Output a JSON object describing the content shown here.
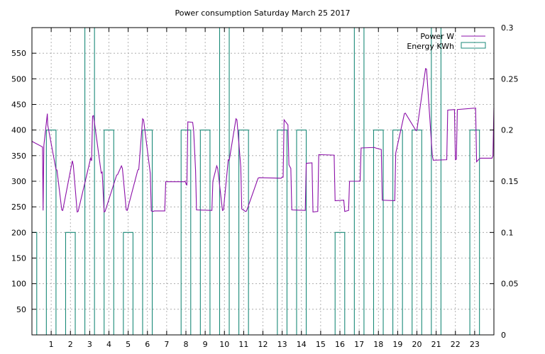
{
  "chart_data": {
    "type": "line",
    "title": "Power consumption Saturday March 25 2017",
    "xlabel": "",
    "ylabel": "",
    "y2label": "",
    "xlim": [
      0,
      24
    ],
    "ylim": [
      0,
      600
    ],
    "y2lim": [
      0,
      0.3
    ],
    "grid": true,
    "legend_position": "top-right",
    "x_ticks": [
      1,
      2,
      3,
      4,
      5,
      6,
      7,
      8,
      9,
      10,
      11,
      12,
      13,
      14,
      15,
      16,
      17,
      18,
      19,
      20,
      21,
      22,
      23
    ],
    "y_ticks": [
      50,
      100,
      150,
      200,
      250,
      300,
      350,
      400,
      450,
      500,
      550
    ],
    "y2_ticks": [
      "0",
      "0.05",
      "0.1",
      "0.15",
      "0.2",
      "0.25",
      "0.3"
    ],
    "series": [
      {
        "name": "Power W",
        "axis": "left",
        "color": "#8b0fa8",
        "x": [
          0,
          0.55,
          0.58,
          0.62,
          0.8,
          0.82,
          1.25,
          1.3,
          1.55,
          1.6,
          2.1,
          2.15,
          2.35,
          2.4,
          3.05,
          3.1,
          3.15,
          3.2,
          3.6,
          3.65,
          3.75,
          3.8,
          4.4,
          4.45,
          4.65,
          4.7,
          4.9,
          4.95,
          5.5,
          5.55,
          5.75,
          5.8,
          6.15,
          6.2,
          6.3,
          6.35,
          6.9,
          6.95,
          7.9,
          7.95,
          8.05,
          8.1,
          8.35,
          8.4,
          8.5,
          8.55,
          9.35,
          9.4,
          9.6,
          9.65,
          9.9,
          9.95,
          10.2,
          10.25,
          10.6,
          10.65,
          10.85,
          10.9,
          11.1,
          11.15,
          11.75,
          11.8,
          12.95,
          13.0,
          13.05,
          13.1,
          13.3,
          13.35,
          13.45,
          13.5,
          14.2,
          14.25,
          14.55,
          14.6,
          14.85,
          14.9,
          15.7,
          15.75,
          16.2,
          16.25,
          16.45,
          16.5,
          17.05,
          17.1,
          17.8,
          17.85,
          18.15,
          18.2,
          18.85,
          18.9,
          19.35,
          19.4,
          19.95,
          20.0,
          20.45,
          20.5,
          20.8,
          20.85,
          21.55,
          21.6,
          21.95,
          22.0,
          22.05,
          22.1,
          23.05,
          23.1,
          23.25,
          23.3,
          23.9,
          23.95,
          24.0
        ],
        "y": [
          378,
          367,
          243,
          370,
          432,
          410,
          323,
          322,
          244,
          243,
          340,
          331,
          240,
          241,
          345,
          340,
          427,
          428,
          316,
          318,
          240,
          241,
          312,
          313,
          330,
          325,
          244,
          243,
          322,
          323,
          422,
          420,
          315,
          242,
          241,
          242,
          242,
          299,
          299,
          300,
          292,
          416,
          415,
          400,
          322,
          244,
          243,
          300,
          330,
          325,
          243,
          244,
          342,
          341,
          422,
          420,
          328,
          246,
          241,
          242,
          306,
          307,
          306,
          308,
          308,
          420,
          410,
          332,
          325,
          244,
          243,
          335,
          336,
          240,
          241,
          352,
          351,
          262,
          263,
          241,
          243,
          300,
          300,
          365,
          366,
          365,
          362,
          263,
          262,
          355,
          432,
          433,
          399,
          400,
          520,
          519,
          350,
          341,
          342,
          439,
          440,
          342,
          343,
          440,
          443,
          338,
          344,
          345,
          345,
          350,
          443
        ]
      },
      {
        "name": "Energy KWh",
        "axis": "right",
        "color": "#1b8a78",
        "style": "steps",
        "x": [
          0,
          0.25,
          0.75,
          1.25,
          1.75,
          2.25,
          2.75,
          3.25,
          3.75,
          4.25,
          4.75,
          5.25,
          5.75,
          6.25,
          6.75,
          7.25,
          7.75,
          8.25,
          8.75,
          9.25,
          9.75,
          10.25,
          10.75,
          11.25,
          11.75,
          12.25,
          12.75,
          13.25,
          13.75,
          14.25,
          14.75,
          15.25,
          15.75,
          16.25,
          16.75,
          17.25,
          17.75,
          18.25,
          18.75,
          19.25,
          19.75,
          20.25,
          20.75,
          21.25,
          21.75,
          22.25,
          22.75,
          23.25,
          24.0
        ],
        "y": [
          0.1,
          0,
          0.2,
          0,
          0.1,
          0,
          0.3,
          0,
          0.2,
          0,
          0.1,
          0,
          0.2,
          0,
          0,
          0,
          0.2,
          0,
          0.2,
          0,
          0.3,
          0,
          0.2,
          0,
          0,
          0,
          0.2,
          0,
          0.2,
          0,
          0,
          0,
          0.1,
          0,
          0.3,
          0,
          0.2,
          0,
          0.2,
          0,
          0.2,
          0,
          0.3,
          0,
          0,
          0,
          0.2,
          0,
          0
        ]
      }
    ]
  }
}
